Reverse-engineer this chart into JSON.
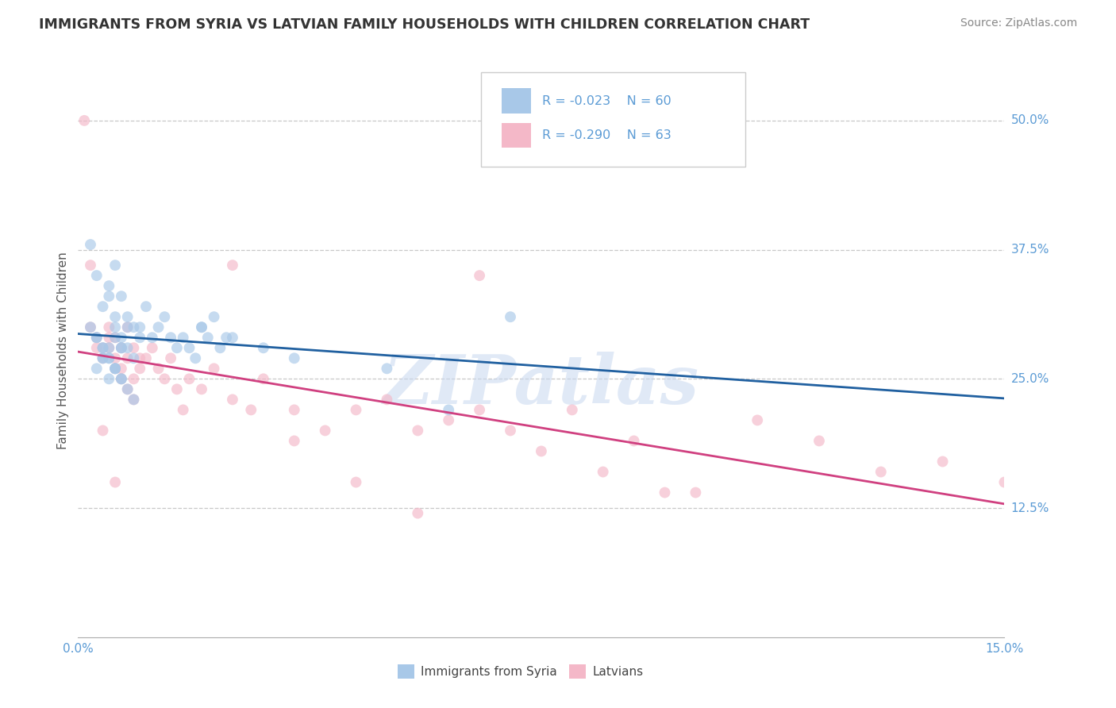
{
  "title": "IMMIGRANTS FROM SYRIA VS LATVIAN FAMILY HOUSEHOLDS WITH CHILDREN CORRELATION CHART",
  "source": "Source: ZipAtlas.com",
  "ylabel": "Family Households with Children",
  "y_ticks_right": [
    0.125,
    0.25,
    0.375,
    0.5
  ],
  "y_tick_labels_right": [
    "12.5%",
    "25.0%",
    "37.5%",
    "50.0%"
  ],
  "legend_label_blue": "Immigrants from Syria",
  "legend_label_pink": "Latvians",
  "legend_R_blue": "R = -0.023",
  "legend_N_blue": "N = 60",
  "legend_R_pink": "R = -0.290",
  "legend_N_pink": "N = 63",
  "blue_color": "#a8c8e8",
  "pink_color": "#f4b8c8",
  "blue_line_color": "#2060a0",
  "pink_line_color": "#d04080",
  "grid_color": "#c8c8c8",
  "background_color": "#ffffff",
  "watermark": "ZIPatlas",
  "watermark_color_zip": "#c8d4e8",
  "watermark_color_atlas": "#a0b8d8",
  "title_color": "#333333",
  "axis_label_color": "#5b9bd5",
  "scatter_alpha": 0.65,
  "scatter_size": 100,
  "blue_x": [
    0.002,
    0.003,
    0.004,
    0.005,
    0.006,
    0.007,
    0.008,
    0.009,
    0.01,
    0.011,
    0.012,
    0.013,
    0.014,
    0.015,
    0.016,
    0.017,
    0.018,
    0.019,
    0.02,
    0.021,
    0.022,
    0.023,
    0.024,
    0.006,
    0.007,
    0.008,
    0.009,
    0.01,
    0.005,
    0.006,
    0.007,
    0.008,
    0.004,
    0.005,
    0.006,
    0.003,
    0.004,
    0.005,
    0.006,
    0.007,
    0.008,
    0.009,
    0.003,
    0.004,
    0.005,
    0.006,
    0.007,
    0.02,
    0.025,
    0.03,
    0.035,
    0.05,
    0.06,
    0.07,
    0.002,
    0.003,
    0.004,
    0.005,
    0.006,
    0.007
  ],
  "blue_y": [
    0.38,
    0.35,
    0.32,
    0.34,
    0.36,
    0.33,
    0.31,
    0.3,
    0.3,
    0.32,
    0.29,
    0.3,
    0.31,
    0.29,
    0.28,
    0.29,
    0.28,
    0.27,
    0.3,
    0.29,
    0.31,
    0.28,
    0.29,
    0.3,
    0.28,
    0.3,
    0.27,
    0.29,
    0.33,
    0.31,
    0.29,
    0.28,
    0.27,
    0.28,
    0.29,
    0.26,
    0.27,
    0.25,
    0.26,
    0.25,
    0.24,
    0.23,
    0.29,
    0.28,
    0.27,
    0.26,
    0.28,
    0.3,
    0.29,
    0.28,
    0.27,
    0.26,
    0.22,
    0.31,
    0.3,
    0.29,
    0.28,
    0.27,
    0.26,
    0.25
  ],
  "pink_x": [
    0.001,
    0.002,
    0.003,
    0.004,
    0.005,
    0.005,
    0.006,
    0.006,
    0.007,
    0.007,
    0.008,
    0.008,
    0.009,
    0.009,
    0.01,
    0.01,
    0.011,
    0.012,
    0.013,
    0.014,
    0.015,
    0.016,
    0.017,
    0.018,
    0.02,
    0.022,
    0.025,
    0.028,
    0.03,
    0.035,
    0.04,
    0.045,
    0.05,
    0.055,
    0.06,
    0.065,
    0.07,
    0.08,
    0.09,
    0.1,
    0.11,
    0.12,
    0.13,
    0.14,
    0.15,
    0.003,
    0.004,
    0.005,
    0.006,
    0.007,
    0.008,
    0.009,
    0.025,
    0.035,
    0.045,
    0.055,
    0.065,
    0.075,
    0.085,
    0.095,
    0.002,
    0.004,
    0.006
  ],
  "pink_y": [
    0.5,
    0.3,
    0.29,
    0.28,
    0.3,
    0.28,
    0.27,
    0.29,
    0.28,
    0.26,
    0.3,
    0.27,
    0.28,
    0.25,
    0.27,
    0.26,
    0.27,
    0.28,
    0.26,
    0.25,
    0.27,
    0.24,
    0.22,
    0.25,
    0.24,
    0.26,
    0.23,
    0.22,
    0.25,
    0.22,
    0.2,
    0.22,
    0.23,
    0.2,
    0.21,
    0.35,
    0.2,
    0.22,
    0.19,
    0.14,
    0.21,
    0.19,
    0.16,
    0.17,
    0.15,
    0.28,
    0.27,
    0.29,
    0.26,
    0.25,
    0.24,
    0.23,
    0.36,
    0.19,
    0.15,
    0.12,
    0.22,
    0.18,
    0.16,
    0.14,
    0.36,
    0.2,
    0.15
  ]
}
